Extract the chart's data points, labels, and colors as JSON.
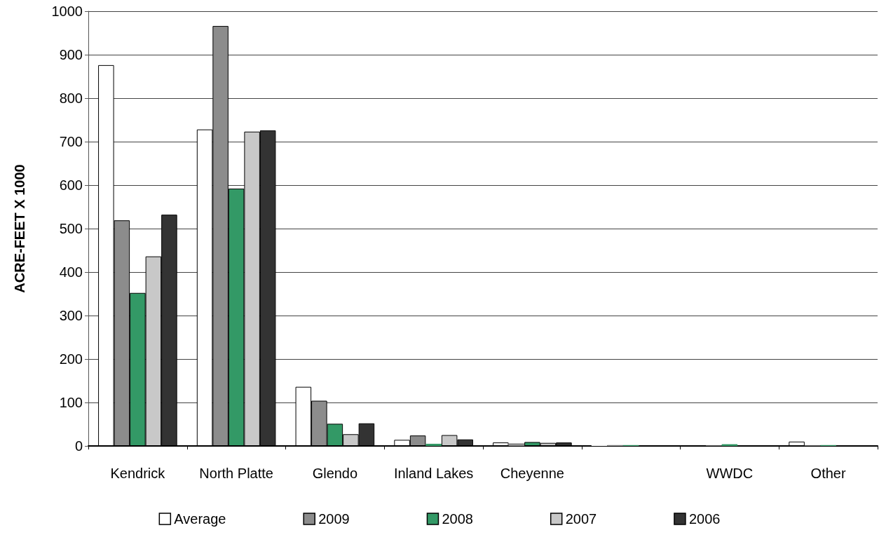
{
  "chart_data": {
    "type": "bar",
    "ylabel": "ACRE-FEET X 1000",
    "categories": [
      "Kendrick",
      "North Platte",
      "Glendo",
      "Inland Lakes",
      "Cheyenne",
      null,
      "WWDC",
      "Other"
    ],
    "series": [
      {
        "name": "Average",
        "color": "#ffffff",
        "values": [
          876,
          728,
          136,
          14,
          8,
          2,
          0,
          10
        ]
      },
      {
        "name": "2009",
        "color": "#8c8c8c",
        "values": [
          519,
          966,
          104,
          24,
          6,
          2,
          1,
          1
        ]
      },
      {
        "name": "2008",
        "color": "#339966",
        "values": [
          352,
          592,
          51,
          5,
          9,
          2,
          4,
          2
        ]
      },
      {
        "name": "2007",
        "color": "#c8c8c8",
        "values": [
          436,
          723,
          27,
          25,
          7,
          null,
          0,
          0
        ]
      },
      {
        "name": "2006",
        "color": "#333333",
        "values": [
          532,
          726,
          52,
          15,
          8,
          null,
          0,
          null
        ]
      }
    ],
    "ylim": [
      0,
      1000
    ],
    "yticks": [
      0,
      100,
      200,
      300,
      400,
      500,
      600,
      700,
      800,
      900,
      1000
    ],
    "grid": "y",
    "legend": "bottom"
  }
}
